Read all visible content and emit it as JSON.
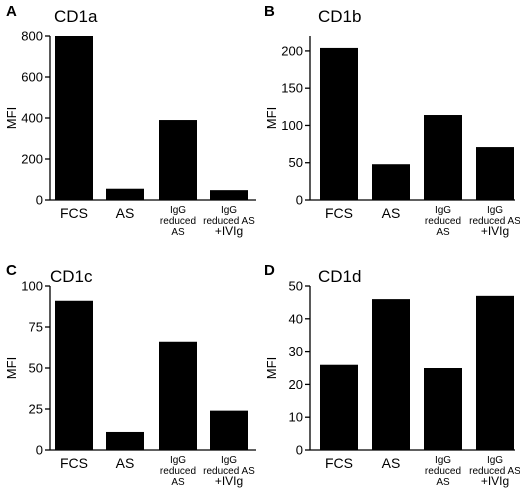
{
  "chart_data": [
    {
      "panel": "A",
      "title": "CD1a",
      "type": "bar",
      "ylabel": "MFI",
      "ylim": [
        0,
        800
      ],
      "yticks": [
        0,
        200,
        400,
        600,
        800
      ],
      "categories": [
        "FCS",
        "AS",
        "IgG reduced AS",
        "IgG reduced AS +IVIg"
      ],
      "values": [
        800,
        55,
        390,
        48
      ]
    },
    {
      "panel": "B",
      "title": "CD1b",
      "type": "bar",
      "ylabel": "MFI",
      "ylim": [
        0,
        220
      ],
      "yticks": [
        0,
        50,
        100,
        150,
        200
      ],
      "categories": [
        "FCS",
        "AS",
        "IgG reduced AS",
        "IgG reduced AS +IVIg"
      ],
      "values": [
        204,
        48,
        114,
        71
      ]
    },
    {
      "panel": "C",
      "title": "CD1c",
      "type": "bar",
      "ylabel": "MFI",
      "ylim": [
        0,
        100
      ],
      "yticks": [
        0,
        25,
        50,
        75,
        100
      ],
      "categories": [
        "FCS",
        "AS",
        "IgG reduced AS",
        "IgG reduced AS +IVIg"
      ],
      "values": [
        91,
        11,
        66,
        24
      ]
    },
    {
      "panel": "D",
      "title": "CD1d",
      "type": "bar",
      "ylabel": "MFI",
      "ylim": [
        0,
        50
      ],
      "yticks": [
        0,
        10,
        20,
        30,
        40,
        50
      ],
      "categories": [
        "FCS",
        "AS",
        "IgG reduced AS",
        "IgG reduced AS +IVIg"
      ],
      "values": [
        26,
        46,
        25,
        47
      ]
    }
  ]
}
